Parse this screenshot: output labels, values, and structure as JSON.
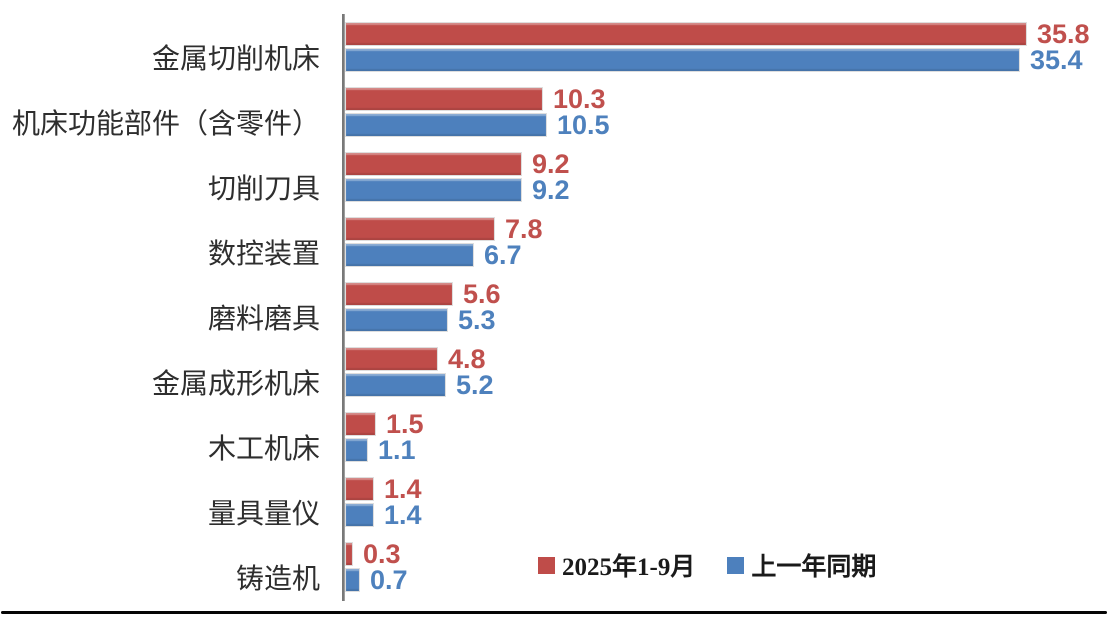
{
  "chart_data": {
    "type": "bar",
    "orientation": "horizontal",
    "title": "",
    "xlabel": "",
    "ylabel": "",
    "xlim": [
      0,
      40
    ],
    "grid": false,
    "legend_position": "bottom",
    "categories": [
      "金属切削机床",
      "机床功能部件（含零件）",
      "切削刀具",
      "数控装置",
      "磨料磨具",
      "金属成形机床",
      "木工机床",
      "量具量仪",
      "铸造机"
    ],
    "series": [
      {
        "name": "2025年1-9月",
        "color": "#bf4c49",
        "label_color": "#c0504d",
        "values": [
          35.8,
          10.3,
          9.2,
          7.8,
          5.6,
          4.8,
          1.5,
          1.4,
          0.3
        ]
      },
      {
        "name": "上一年同期",
        "color": "#4d80bd",
        "label_color": "#4e81bd",
        "values": [
          35.4,
          10.5,
          9.2,
          6.7,
          5.3,
          5.2,
          1.1,
          1.4,
          0.7
        ]
      }
    ]
  },
  "legend": {
    "items": [
      {
        "label": "2025年1-9月"
      },
      {
        "label": "上一年同期"
      }
    ]
  }
}
